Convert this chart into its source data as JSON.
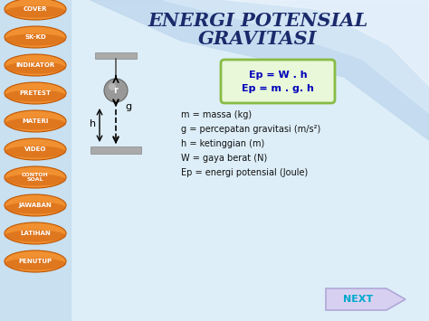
{
  "title_line1": "ENERGI POTENSIAL",
  "title_line2": "GRAVITASI",
  "title_color": "#1a2a6b",
  "bg_color": "#ddeef8",
  "bg_wave_color1": "#b8d8ee",
  "bg_wave_color2": "#90bedd",
  "sidebar_buttons": [
    "COVER",
    "SK-KD",
    "INDIKATOR",
    "PRETEST",
    "MATERI",
    "VIDEO",
    "CONTOH\nSOAL",
    "JAWABAN",
    "LATIHAN",
    "PENUTUP"
  ],
  "sidebar_color_top": "#f09030",
  "sidebar_color_bot": "#d06010",
  "sidebar_text_color": "#ffffff",
  "formula_box_bg": "#e8f8d8",
  "formula_box_border": "#88bb44",
  "formula_line1": "Ep = W . h",
  "formula_line2": "Ep = m . g. h",
  "formula_color": "#0000bb",
  "desc_lines": [
    "m = massa (kg)",
    "g = percepatan gravitasi (m/s²)",
    "h = ketinggian (m)",
    "W = gaya berat (N)",
    "Ep = energi potensial (Joule)"
  ],
  "desc_color": "#111111",
  "next_text": "NEXT",
  "next_bg": "#d8d0f0",
  "next_border": "#b0a8d8",
  "next_text_color": "#00aacc"
}
